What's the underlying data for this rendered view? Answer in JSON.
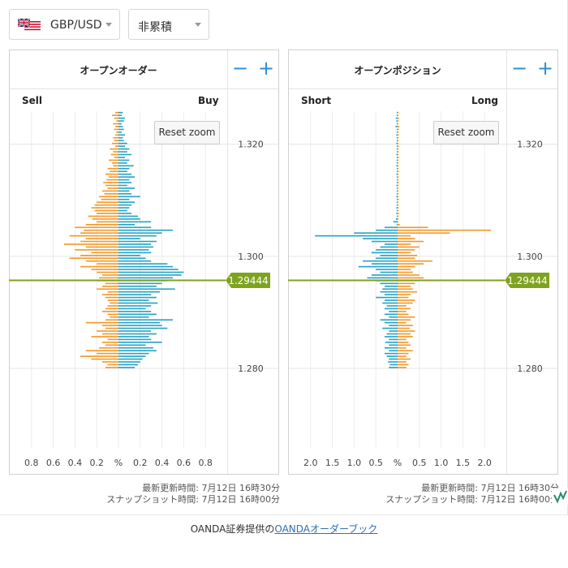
{
  "selector": {
    "pair": "GBP/USD",
    "mode": "非累積"
  },
  "panels": [
    {
      "title": "オープンオーダー",
      "left_label": "Sell",
      "right_label": "Buy",
      "reset_label": "Reset zoom"
    },
    {
      "title": "オープンポジション",
      "left_label": "Short",
      "right_label": "Long",
      "reset_label": "Reset zoom"
    }
  ],
  "current_price_label": "1.29444",
  "timestamps": [
    {
      "updated": "最新更新時間: 7月12日 16時30分",
      "snapshot": "スナップショット時間: 7月12日 16時00分"
    },
    {
      "updated": "最新更新時間: 7月12日 16時30分",
      "snapshot": "スナップショット時間: 7月12日 16時00分"
    }
  ],
  "footer": {
    "prefix": "OANDA証券提供の",
    "link": "OANDAオーダーブック"
  },
  "colors": {
    "sell": "#2aa4c4",
    "buy": "#f39a2b",
    "price": "#7ea320"
  },
  "chart_data": [
    {
      "type": "bar",
      "title": "オープンオーダー",
      "orientation": "horizontal-butterfly",
      "y_axis_ticks": [
        "1.320",
        "1.300",
        "1.280"
      ],
      "x_axis_ticks": [
        "0.8",
        "0.6",
        "0.4",
        "0.2",
        "%",
        "0.2",
        "0.4",
        "0.6",
        "0.8"
      ],
      "x_unit": "%",
      "price_range": [
        1.2658,
        1.3259
      ],
      "x_range": [
        -1.0,
        1.0
      ],
      "bucket_size": 0.0005,
      "current_price": 1.29444,
      "series": [
        {
          "name": "Sell",
          "side": "left",
          "values": [
            0.03,
            0.06,
            0.04,
            0.02,
            0.05,
            0.03,
            0.04,
            0.02,
            0.03,
            0.05,
            0.04,
            0.06,
            0.03,
            0.08,
            0.05,
            0.07,
            0.04,
            0.09,
            0.06,
            0.05,
            0.1,
            0.08,
            0.12,
            0.09,
            0.11,
            0.14,
            0.12,
            0.1,
            0.15,
            0.13,
            0.18,
            0.16,
            0.2,
            0.22,
            0.25,
            0.22,
            0.2,
            0.28,
            0.24,
            0.2,
            0.3,
            0.4,
            0.32,
            0.35,
            0.45,
            0.3,
            0.35,
            0.5,
            0.3,
            0.4,
            0.25,
            0.35,
            0.45,
            0.3,
            0.2,
            0.35,
            0.25,
            0.2,
            0.15,
            0.18,
            0.2,
            0.12,
            0.15,
            0.2,
            0.1,
            0.15,
            0.12,
            0.1,
            0.08,
            0.1,
            0.12,
            0.15,
            0.1,
            0.08,
            0.12,
            0.3,
            0.15,
            0.12,
            0.2,
            0.15,
            0.25,
            0.1,
            0.15,
            0.12,
            0.18,
            0.3,
            0.2,
            0.35,
            0.25,
            0.15,
            0.1,
            0.12
          ]
        },
        {
          "name": "Buy",
          "side": "right",
          "values": [
            0.04,
            0.03,
            0.06,
            0.05,
            0.03,
            0.04,
            0.05,
            0.03,
            0.06,
            0.04,
            0.05,
            0.08,
            0.06,
            0.1,
            0.08,
            0.12,
            0.06,
            0.1,
            0.08,
            0.14,
            0.1,
            0.08,
            0.12,
            0.15,
            0.1,
            0.12,
            0.08,
            0.15,
            0.1,
            0.12,
            0.2,
            0.1,
            0.15,
            0.12,
            0.1,
            0.08,
            0.12,
            0.18,
            0.2,
            0.3,
            0.15,
            0.3,
            0.5,
            0.4,
            0.35,
            0.2,
            0.35,
            0.3,
            0.32,
            0.28,
            0.3,
            0.2,
            0.25,
            0.3,
            0.45,
            0.5,
            0.55,
            0.6,
            0.58,
            0.5,
            0.45,
            0.4,
            0.35,
            0.52,
            0.38,
            0.3,
            0.35,
            0.28,
            0.36,
            0.3,
            0.25,
            0.3,
            0.35,
            0.28,
            0.5,
            0.38,
            0.4,
            0.45,
            0.3,
            0.35,
            0.28,
            0.3,
            0.4,
            0.25,
            0.32,
            0.35,
            0.28,
            0.25,
            0.22,
            0.2,
            0.18,
            0.15
          ]
        }
      ]
    },
    {
      "type": "bar",
      "title": "オープンポジション",
      "orientation": "horizontal-butterfly",
      "y_axis_ticks": [
        "1.320",
        "1.300",
        "1.280"
      ],
      "x_axis_ticks": [
        "2.0",
        "1.5",
        "1.0",
        "0.5",
        "%",
        "0.5",
        "1.0",
        "1.5",
        "2.0"
      ],
      "x_unit": "%",
      "price_range": [
        1.2658,
        1.3259
      ],
      "x_range": [
        -2.5,
        2.5
      ],
      "bucket_size": 0.0005,
      "current_price": 1.29444,
      "series": [
        {
          "name": "Short",
          "side": "left",
          "values": [
            0.02,
            0.02,
            0.04,
            0.03,
            0.02,
            0.05,
            0.02,
            0.02,
            0.03,
            0.02,
            0.02,
            0.03,
            0.02,
            0.02,
            0.02,
            0.03,
            0.02,
            0.02,
            0.02,
            0.03,
            0.02,
            0.02,
            0.03,
            0.02,
            0.02,
            0.02,
            0.03,
            0.02,
            0.02,
            0.02,
            0.03,
            0.02,
            0.02,
            0.02,
            0.03,
            0.02,
            0.03,
            0.02,
            0.04,
            0.1,
            0.02,
            0.3,
            0.5,
            1.0,
            1.9,
            0.8,
            0.6,
            0.3,
            0.4,
            0.5,
            0.6,
            0.4,
            0.5,
            0.8,
            0.6,
            0.9,
            0.5,
            0.4,
            0.6,
            0.7,
            0.5,
            0.4,
            0.3,
            0.35,
            0.4,
            0.3,
            0.5,
            0.3,
            0.35,
            0.25,
            0.3,
            0.2,
            0.3,
            0.2,
            0.4,
            0.3,
            0.2,
            0.35,
            0.2,
            0.25,
            0.3,
            0.2,
            0.28,
            0.2,
            0.3,
            0.2,
            0.3,
            0.25,
            0.2,
            0.22,
            0.18,
            0.2
          ]
        },
        {
          "name": "Long",
          "side": "right",
          "values": [
            0.02,
            0.02,
            0.03,
            0.02,
            0.02,
            0.04,
            0.03,
            0.02,
            0.03,
            0.02,
            0.02,
            0.02,
            0.03,
            0.02,
            0.02,
            0.02,
            0.03,
            0.02,
            0.02,
            0.02,
            0.02,
            0.03,
            0.02,
            0.02,
            0.02,
            0.03,
            0.02,
            0.02,
            0.02,
            0.02,
            0.02,
            0.03,
            0.02,
            0.02,
            0.02,
            0.02,
            0.03,
            0.02,
            0.02,
            0.02,
            0.05,
            0.7,
            2.15,
            1.2,
            0.3,
            0.4,
            0.6,
            0.3,
            0.5,
            0.4,
            0.3,
            0.45,
            0.4,
            0.8,
            0.6,
            0.4,
            0.3,
            0.35,
            0.5,
            0.6,
            0.5,
            0.4,
            0.3,
            0.35,
            0.45,
            0.3,
            0.25,
            0.4,
            0.35,
            0.2,
            0.3,
            0.2,
            0.25,
            0.4,
            0.3,
            0.2,
            0.35,
            0.28,
            0.4,
            0.3,
            0.35,
            0.2,
            0.25,
            0.3,
            0.2,
            0.35,
            0.25,
            0.2,
            0.3,
            0.2,
            0.25,
            0.2
          ]
        }
      ]
    }
  ]
}
